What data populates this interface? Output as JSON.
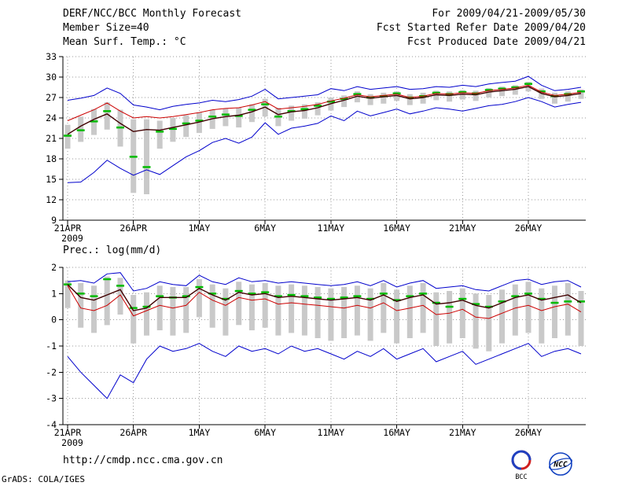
{
  "header": {
    "title": "DERF/NCC/BCC Monthly Forecast",
    "member_size": "Member Size=40",
    "for_range": "For 2009/04/21-2009/05/30",
    "refer_date": "Fcst Started Refer Date 2009/04/20",
    "produced_date": "Fcst Produced Date 2009/04/21"
  },
  "footer": {
    "url": "http://cmdp.ncc.cma.gov.cn",
    "credit": "GrADS: COLA/IGES"
  },
  "logos": {
    "bcc": "BCC",
    "ncc": "NCC"
  },
  "colors": {
    "envelope": "#0000cc",
    "ensemble_mean": "#cc0000",
    "forecast": "#400000",
    "obs": "#00bb00",
    "bar": "#c9c9c9",
    "grid": "#9a9a9a",
    "text": "#000000"
  },
  "chart_data": [
    {
      "type": "line",
      "title": "Mean Surf. Temp.: °C",
      "ylim": [
        9,
        33
      ],
      "yticks": [
        9,
        12,
        15,
        18,
        21,
        24,
        27,
        30,
        33
      ],
      "n": 40,
      "grid": "dotted",
      "xticks": [
        {
          "i": 0,
          "label": "21APR",
          "year": "2009"
        },
        {
          "i": 5,
          "label": "26APR"
        },
        {
          "i": 10,
          "label": "1MAY"
        },
        {
          "i": 15,
          "label": "6MAY"
        },
        {
          "i": 20,
          "label": "11MAY"
        },
        {
          "i": 25,
          "label": "16MAY"
        },
        {
          "i": 30,
          "label": "21MAY"
        },
        {
          "i": 35,
          "label": "26MAY"
        }
      ],
      "spread_bars": {
        "color": "#c9c9c9",
        "top": [
          23.0,
          24.2,
          25.3,
          26.3,
          25.2,
          23.8,
          23.8,
          23.6,
          24.0,
          24.4,
          24.8,
          25.2,
          25.4,
          25.5,
          26.0,
          26.8,
          25.5,
          25.8,
          26.0,
          26.3,
          27.0,
          27.3,
          27.9,
          27.5,
          27.7,
          27.9,
          27.5,
          27.7,
          28.0,
          27.9,
          28.1,
          28.0,
          28.4,
          28.6,
          28.8,
          29.3,
          28.3,
          27.7,
          27.9,
          28.2
        ],
        "bottom": [
          19.5,
          20.5,
          21.5,
          22.3,
          19.8,
          13.0,
          12.8,
          19.5,
          20.5,
          21.2,
          21.8,
          22.4,
          22.8,
          22.6,
          23.4,
          24.2,
          22.8,
          23.6,
          23.9,
          24.4,
          25.1,
          25.6,
          26.3,
          25.9,
          26.1,
          26.5,
          25.9,
          26.1,
          26.6,
          26.4,
          26.7,
          26.5,
          27.0,
          27.2,
          27.4,
          27.9,
          26.8,
          26.1,
          26.4,
          26.8
        ]
      },
      "obs_dashes": {
        "color": "#00bb00",
        "values": [
          21.4,
          22.2,
          23.5,
          25.0,
          22.6,
          18.3,
          16.8,
          22.0,
          22.4,
          23.2,
          23.6,
          24.2,
          24.5,
          24.3,
          25.2,
          26.0,
          24.2,
          25.0,
          25.3,
          25.8,
          26.4,
          26.8,
          27.5,
          27.0,
          27.2,
          27.6,
          27.0,
          27.2,
          27.7,
          27.5,
          27.8,
          27.6,
          28.1,
          28.3,
          28.5,
          29.0,
          27.9,
          27.2,
          27.5,
          27.9
        ]
      },
      "series": [
        {
          "name": "member-max",
          "color": "#0000cc",
          "width": 1,
          "values": [
            26.6,
            26.9,
            27.3,
            28.4,
            27.6,
            25.9,
            25.6,
            25.2,
            25.7,
            26.0,
            26.2,
            26.6,
            26.4,
            26.7,
            27.2,
            28.2,
            26.8,
            27.0,
            27.2,
            27.4,
            28.3,
            28.0,
            28.6,
            28.2,
            28.4,
            28.6,
            28.2,
            28.3,
            28.6,
            28.5,
            28.8,
            28.6,
            29.0,
            29.2,
            29.4,
            30.1,
            28.8,
            28.0,
            28.2,
            28.5
          ]
        },
        {
          "name": "member-min",
          "color": "#0000cc",
          "width": 1,
          "values": [
            14.5,
            14.6,
            16.0,
            17.8,
            16.6,
            15.6,
            16.4,
            15.7,
            17.0,
            18.3,
            19.2,
            20.4,
            21.0,
            20.3,
            21.2,
            23.3,
            21.6,
            22.5,
            22.8,
            23.2,
            24.3,
            23.6,
            25.0,
            24.3,
            24.8,
            25.3,
            24.6,
            25.0,
            25.5,
            25.3,
            25.0,
            25.4,
            25.8,
            26.0,
            26.4,
            27.0,
            26.4,
            25.6,
            26.0,
            26.3
          ]
        },
        {
          "name": "ensemble-mean",
          "color": "#cc0000",
          "width": 1,
          "values": [
            23.6,
            24.4,
            25.2,
            26.2,
            25.0,
            24.0,
            24.2,
            24.0,
            24.2,
            24.5,
            24.8,
            25.2,
            25.4,
            25.5,
            25.9,
            26.4,
            25.3,
            25.5,
            25.7,
            26.0,
            26.5,
            26.9,
            27.4,
            27.1,
            27.3,
            27.5,
            27.0,
            27.2,
            27.6,
            27.5,
            27.7,
            27.6,
            28.0,
            28.2,
            28.4,
            28.8,
            27.8,
            27.3,
            27.5,
            27.8
          ]
        },
        {
          "name": "forecast",
          "color": "#400000",
          "width": 1.4,
          "values": [
            21.6,
            22.8,
            23.8,
            24.6,
            23.2,
            22.0,
            22.3,
            22.2,
            22.6,
            23.0,
            23.4,
            23.9,
            24.2,
            24.4,
            24.9,
            25.6,
            24.5,
            24.9,
            25.1,
            25.5,
            26.1,
            26.6,
            27.2,
            26.9,
            27.1,
            27.3,
            26.8,
            27.0,
            27.4,
            27.3,
            27.5,
            27.4,
            27.8,
            28.0,
            28.2,
            28.6,
            27.6,
            27.1,
            27.3,
            27.6
          ]
        }
      ]
    },
    {
      "type": "line",
      "title": "Prec.: log(mm/d)",
      "ylim": [
        -4,
        2
      ],
      "yticks": [
        -4,
        -3,
        -2,
        -1,
        0,
        1,
        2
      ],
      "n": 40,
      "grid": "dotted",
      "xticks": [
        {
          "i": 0,
          "label": "21APR",
          "year": "2009"
        },
        {
          "i": 5,
          "label": "26APR"
        },
        {
          "i": 10,
          "label": "1MAY"
        },
        {
          "i": 15,
          "label": "6MAY"
        },
        {
          "i": 20,
          "label": "11MAY"
        },
        {
          "i": 25,
          "label": "16MAY"
        },
        {
          "i": 30,
          "label": "21MAY"
        },
        {
          "i": 35,
          "label": "26MAY"
        }
      ],
      "spread_bars": {
        "color": "#c9c9c9",
        "top": [
          1.5,
          1.4,
          1.3,
          1.65,
          1.6,
          0.95,
          1.05,
          1.3,
          1.25,
          1.25,
          1.55,
          1.35,
          1.2,
          1.45,
          1.35,
          1.4,
          1.3,
          1.35,
          1.3,
          1.25,
          1.2,
          1.25,
          1.3,
          1.2,
          1.4,
          1.15,
          1.3,
          1.4,
          1.05,
          1.1,
          1.2,
          1.0,
          0.95,
          1.15,
          1.35,
          1.45,
          1.2,
          1.3,
          1.4,
          1.1
        ],
        "bottom": [
          0.45,
          -0.3,
          -0.5,
          -0.2,
          0.2,
          -0.9,
          -0.6,
          -0.4,
          -0.6,
          -0.5,
          0.1,
          -0.3,
          -0.6,
          -0.2,
          -0.4,
          -0.3,
          -0.6,
          -0.5,
          -0.6,
          -0.7,
          -0.8,
          -0.7,
          -0.6,
          -0.8,
          -0.5,
          -0.9,
          -0.7,
          -0.5,
          -1.0,
          -0.9,
          -0.7,
          -1.1,
          -1.2,
          -0.9,
          -0.6,
          -0.5,
          -0.9,
          -0.7,
          -0.6,
          -1.0
        ]
      },
      "obs_dashes": {
        "color": "#00bb00",
        "values": [
          1.35,
          1.0,
          0.9,
          1.55,
          1.3,
          0.45,
          0.5,
          0.9,
          0.85,
          0.9,
          1.25,
          1.0,
          0.8,
          1.1,
          1.0,
          1.05,
          0.9,
          0.95,
          0.9,
          0.85,
          0.8,
          0.85,
          0.9,
          0.8,
          1.0,
          0.75,
          0.9,
          1.0,
          0.65,
          0.5,
          0.8,
          0.6,
          0.5,
          0.7,
          0.9,
          1.0,
          0.8,
          0.65,
          0.7,
          0.7
        ]
      },
      "series": [
        {
          "name": "member-max",
          "color": "#0000cc",
          "width": 1,
          "values": [
            1.45,
            1.5,
            1.4,
            1.75,
            1.8,
            1.1,
            1.2,
            1.45,
            1.35,
            1.3,
            1.7,
            1.45,
            1.35,
            1.6,
            1.45,
            1.5,
            1.4,
            1.45,
            1.4,
            1.35,
            1.3,
            1.35,
            1.45,
            1.3,
            1.5,
            1.25,
            1.4,
            1.5,
            1.2,
            1.25,
            1.3,
            1.15,
            1.1,
            1.3,
            1.5,
            1.55,
            1.35,
            1.45,
            1.5,
            1.25
          ]
        },
        {
          "name": "member-min",
          "color": "#0000cc",
          "width": 1,
          "values": [
            -1.4,
            -2.0,
            -2.5,
            -3.0,
            -2.1,
            -2.4,
            -1.5,
            -1.0,
            -1.2,
            -1.1,
            -0.9,
            -1.2,
            -1.4,
            -1.0,
            -1.2,
            -1.1,
            -1.3,
            -1.0,
            -1.2,
            -1.1,
            -1.3,
            -1.5,
            -1.2,
            -1.4,
            -1.1,
            -1.5,
            -1.3,
            -1.1,
            -1.6,
            -1.4,
            -1.2,
            -1.7,
            -1.5,
            -1.3,
            -1.1,
            -0.9,
            -1.4,
            -1.2,
            -1.1,
            -1.3
          ]
        },
        {
          "name": "ensemble-mean",
          "color": "#cc0000",
          "width": 1,
          "values": [
            1.3,
            0.45,
            0.35,
            0.55,
            0.95,
            0.15,
            0.35,
            0.55,
            0.45,
            0.55,
            1.05,
            0.75,
            0.55,
            0.85,
            0.75,
            0.8,
            0.6,
            0.65,
            0.6,
            0.55,
            0.5,
            0.45,
            0.55,
            0.45,
            0.65,
            0.35,
            0.45,
            0.55,
            0.2,
            0.25,
            0.4,
            0.1,
            0.05,
            0.25,
            0.45,
            0.55,
            0.35,
            0.5,
            0.6,
            0.3
          ]
        },
        {
          "name": "forecast",
          "color": "#400000",
          "width": 1.4,
          "values": [
            1.35,
            0.85,
            0.75,
            0.95,
            1.15,
            0.35,
            0.45,
            0.85,
            0.85,
            0.85,
            1.2,
            0.95,
            0.75,
            1.05,
            0.95,
            1.0,
            0.85,
            0.9,
            0.85,
            0.8,
            0.75,
            0.8,
            0.85,
            0.75,
            0.95,
            0.7,
            0.85,
            0.95,
            0.6,
            0.65,
            0.75,
            0.55,
            0.45,
            0.65,
            0.85,
            0.95,
            0.75,
            0.85,
            0.95,
            0.65
          ]
        }
      ]
    }
  ]
}
